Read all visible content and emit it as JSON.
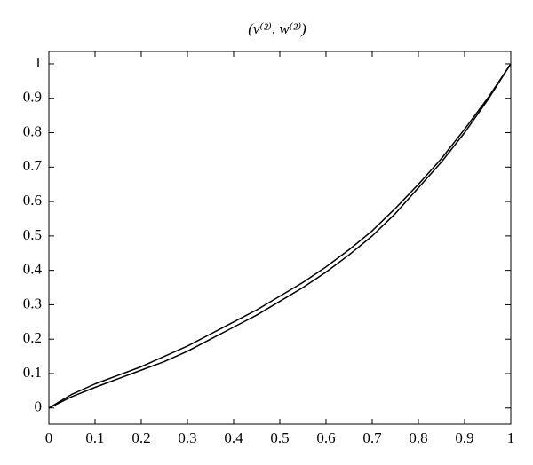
{
  "chart_data": {
    "type": "line",
    "title": "(v⁽²⁾, w⁽²⁾)",
    "x": [
      0,
      0.05,
      0.1,
      0.15,
      0.2,
      0.25,
      0.3,
      0.35,
      0.4,
      0.45,
      0.5,
      0.55,
      0.6,
      0.65,
      0.7,
      0.75,
      0.8,
      0.85,
      0.9,
      0.95,
      1
    ],
    "series": [
      {
        "color": "#000000",
        "values": [
          0,
          0.04,
          0.07,
          0.095,
          0.12,
          0.15,
          0.18,
          0.215,
          0.25,
          0.285,
          0.325,
          0.365,
          0.41,
          0.46,
          0.515,
          0.58,
          0.65,
          0.725,
          0.81,
          0.9,
          1
        ]
      },
      {
        "color": "#000000",
        "values": [
          0,
          0.033,
          0.06,
          0.085,
          0.11,
          0.135,
          0.165,
          0.2,
          0.235,
          0.27,
          0.31,
          0.35,
          0.395,
          0.445,
          0.5,
          0.565,
          0.64,
          0.715,
          0.8,
          0.895,
          1
        ]
      }
    ],
    "xlim": [
      0,
      1
    ],
    "ylim": [
      -0.047,
      1.036
    ],
    "xticks": [
      0,
      0.1,
      0.2,
      0.3,
      0.4,
      0.5,
      0.6,
      0.7,
      0.8,
      0.9,
      1
    ],
    "yticks": [
      0,
      0.1,
      0.2,
      0.3,
      0.4,
      0.5,
      0.6,
      0.7,
      0.8,
      0.9,
      1
    ],
    "grid": false
  }
}
